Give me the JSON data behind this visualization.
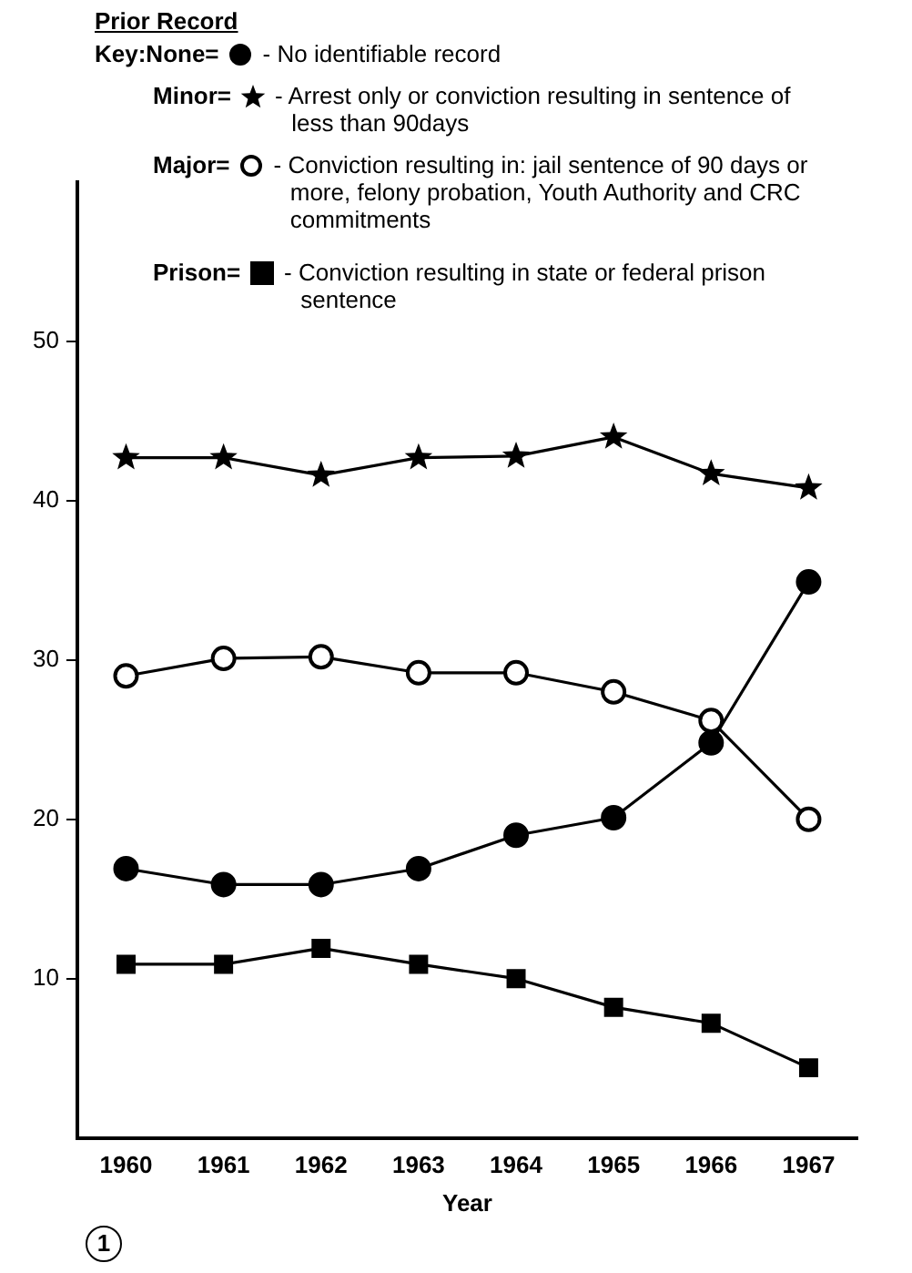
{
  "chart_data": {
    "type": "line",
    "legend_title": "Prior Record",
    "xlabel": "Year",
    "categories": [
      "1960",
      "1961",
      "1962",
      "1963",
      "1964",
      "1965",
      "1966",
      "1967"
    ],
    "series": [
      {
        "name": "None=",
        "color": "#000000",
        "marker": "circle",
        "values": [
          16.9,
          15.9,
          15.9,
          16.9,
          19.0,
          20.1,
          24.8,
          34.9
        ]
      },
      {
        "name": "Minor=",
        "color": "#000000",
        "marker": "star",
        "values": [
          42.7,
          42.7,
          41.6,
          42.7,
          42.8,
          44.0,
          41.7,
          40.8
        ]
      },
      {
        "name": "Major=",
        "color": "#000000",
        "marker": "circle",
        "values": [
          29.0,
          30.1,
          30.2,
          29.2,
          29.2,
          28.0,
          26.2,
          20.0
        ]
      },
      {
        "name": "Prison=",
        "color": "#000000",
        "marker": "square",
        "values": [
          10.9,
          10.9,
          11.9,
          10.9,
          10.0,
          8.2,
          7.2,
          4.4
        ]
      }
    ],
    "annotations": [
      "Key:",
      "- No identifiable record",
      "- Arrest only or conviction resulting in sentence of less than 90days",
      "- Conviction resulting in: jail sentence of 90 days or more, felony probation, Youth Authority and CRC commitments",
      "- Conviction resulting in state or federal prison sentence",
      "1"
    ],
    "ylim": [
      0,
      60
    ],
    "yticks": [
      10,
      20,
      30,
      40,
      50
    ],
    "grid": false,
    "legend": "top",
    "line_style": "solid"
  }
}
